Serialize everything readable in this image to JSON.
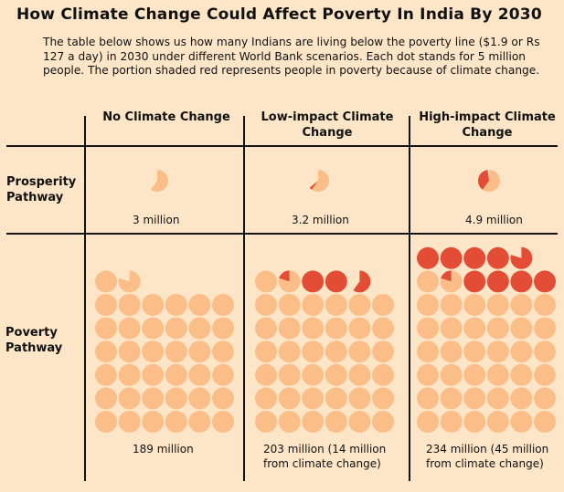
{
  "title": "How Climate Change Could Affect Poverty In India By 2030",
  "subtitle": "The table below shows us how many Indians are living below the poverty line ($1.9 or Rs 127 a day) in 2030 under different World Bank scenarios. Each dot stands for 5 million people. The portion shaded red represents people in poverty because of climate change.",
  "columns": [
    "No Climate Change",
    "Low-impact Climate Change",
    "High-impact Climate Change"
  ],
  "rows": [
    "Prosperity Pathway",
    "Poverty Pathway"
  ],
  "captions": {
    "prosperity": [
      "3 million",
      "3.2 million",
      "4.9 million"
    ],
    "poverty": [
      "189 million",
      "203 million (14 million from climate change)",
      "234 million (45 million from climate change)"
    ]
  },
  "colors": {
    "background": "#fde6c8",
    "base_dot": "#fbbe88",
    "climate_dot": "#e34d35",
    "lines": "#111111"
  },
  "chart_data": {
    "type": "table",
    "title": "How Climate Change Could Affect Poverty In India By 2030",
    "unit_per_dot_million": 5,
    "cells": [
      {
        "row": "Prosperity Pathway",
        "column": "No Climate Change",
        "total_million": 3,
        "climate_million": 0
      },
      {
        "row": "Prosperity Pathway",
        "column": "Low-impact Climate Change",
        "total_million": 3.2,
        "climate_million": 0.2
      },
      {
        "row": "Prosperity Pathway",
        "column": "High-impact Climate Change",
        "total_million": 4.9,
        "climate_million": 1.9
      },
      {
        "row": "Poverty Pathway",
        "column": "No Climate Change",
        "total_million": 189,
        "climate_million": 0
      },
      {
        "row": "Poverty Pathway",
        "column": "Low-impact Climate Change",
        "total_million": 203,
        "climate_million": 14
      },
      {
        "row": "Poverty Pathway",
        "column": "High-impact Climate Change",
        "total_million": 234,
        "climate_million": 45
      }
    ]
  }
}
